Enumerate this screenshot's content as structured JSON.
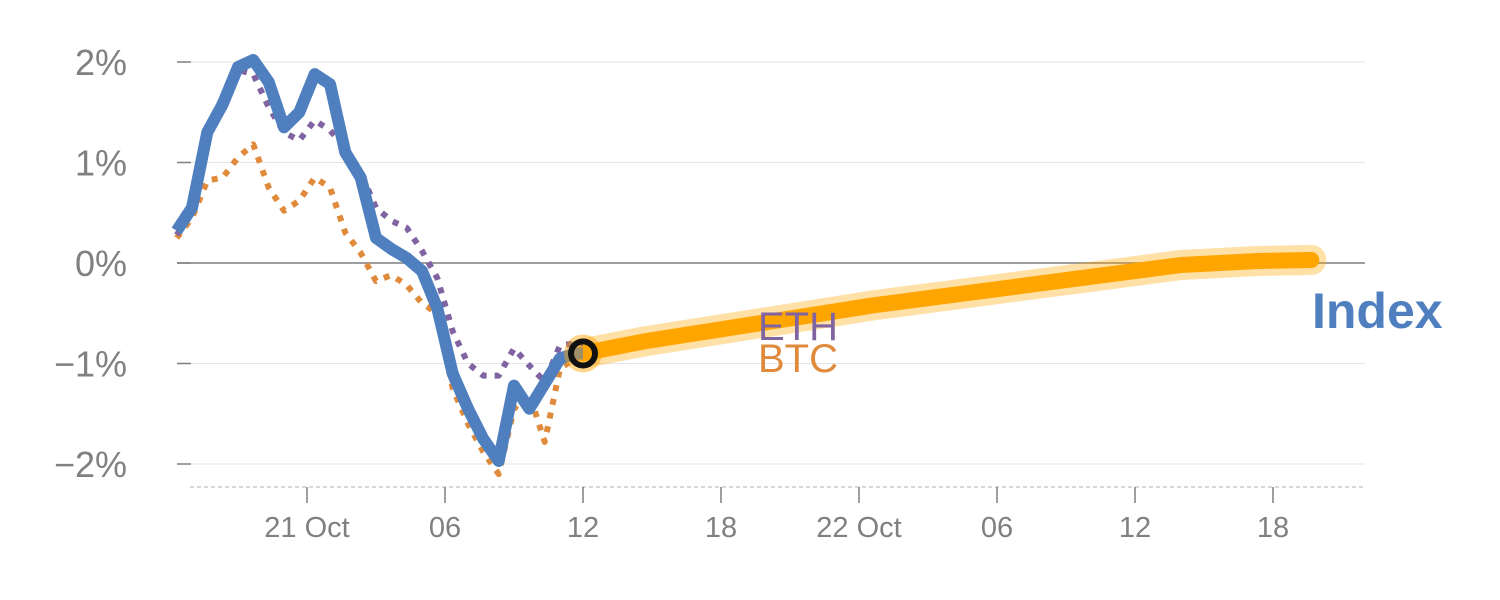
{
  "chart_data": {
    "type": "line",
    "title": "",
    "xlabel": "",
    "ylabel": "",
    "x_unit": "hours",
    "xlim": [
      -8,
      154
    ],
    "ylim": [
      -2.2,
      2.2
    ],
    "y_ticks": [
      {
        "value": 2,
        "label": "2%"
      },
      {
        "value": 1,
        "label": "1%"
      },
      {
        "value": 0,
        "label": "0%"
      },
      {
        "value": -1,
        "label": "−1%"
      },
      {
        "value": -2,
        "label": "−2%"
      }
    ],
    "x_ticks": [
      {
        "value": 12,
        "label": "21 Oct"
      },
      {
        "value": 30,
        "label": "06"
      },
      {
        "value": 48,
        "label": "12"
      },
      {
        "value": 66,
        "label": "18"
      },
      {
        "value": 84,
        "label": "22 Oct"
      },
      {
        "value": 102,
        "label": "06"
      },
      {
        "value": 120,
        "label": "12"
      },
      {
        "value": 138,
        "label": "18"
      }
    ],
    "series": [
      {
        "name": "Index",
        "color": "#4f7fbf",
        "style": "solid",
        "x": [
          -5,
          -3,
          -1,
          1,
          3,
          5,
          7,
          9,
          11,
          13,
          15,
          17,
          19,
          21,
          23,
          25,
          27,
          29,
          31,
          33,
          35,
          37,
          39,
          41,
          43,
          45,
          47,
          48
        ],
        "y": [
          0.32,
          0.55,
          1.3,
          1.58,
          1.95,
          2.02,
          1.8,
          1.35,
          1.5,
          1.88,
          1.78,
          1.1,
          0.85,
          0.25,
          0.14,
          0.05,
          -0.08,
          -0.45,
          -1.1,
          -1.45,
          -1.75,
          -1.97,
          -1.22,
          -1.45,
          -1.2,
          -0.95,
          -0.9,
          -0.9
        ]
      },
      {
        "name": "ETH",
        "color": "#8064a2",
        "style": "dotted",
        "x": [
          -5,
          -3,
          -1,
          1,
          3,
          5,
          7,
          9,
          11,
          13,
          15,
          17,
          19,
          21,
          23,
          25,
          27,
          29,
          31,
          33,
          35,
          37,
          39,
          41,
          43,
          45,
          47,
          48
        ],
        "y": [
          0.28,
          0.5,
          1.35,
          1.65,
          1.92,
          1.88,
          1.55,
          1.3,
          1.22,
          1.42,
          1.32,
          1.15,
          0.9,
          0.55,
          0.42,
          0.35,
          0.12,
          -0.15,
          -0.68,
          -1.0,
          -1.12,
          -1.12,
          -0.85,
          -1.02,
          -1.18,
          -0.82,
          -0.8,
          -0.8
        ]
      },
      {
        "name": "BTC",
        "color": "#e08a3c",
        "style": "dotted",
        "x": [
          -5,
          -3,
          -1,
          1,
          3,
          5,
          7,
          9,
          11,
          13,
          15,
          17,
          19,
          21,
          23,
          25,
          27,
          29,
          31,
          33,
          35,
          37,
          39,
          41,
          43,
          45,
          47,
          48
        ],
        "y": [
          0.25,
          0.45,
          0.82,
          0.85,
          1.05,
          1.18,
          0.75,
          0.52,
          0.62,
          0.85,
          0.75,
          0.3,
          0.1,
          -0.18,
          -0.12,
          -0.22,
          -0.4,
          -0.5,
          -1.25,
          -1.6,
          -1.88,
          -2.1,
          -1.45,
          -1.3,
          -1.78,
          -1.05,
          -0.95,
          -0.93
        ]
      },
      {
        "name": "Index projection",
        "color": "#ffa500",
        "style": "thick",
        "x": [
          48,
          56,
          66,
          76,
          86,
          96,
          106,
          116,
          126,
          136,
          143
        ],
        "y": [
          -0.9,
          -0.78,
          -0.66,
          -0.54,
          -0.42,
          -0.32,
          -0.22,
          -0.12,
          -0.02,
          0.02,
          0.03
        ]
      }
    ],
    "marker": {
      "x": 48,
      "y": -0.9,
      "color": "#ffa500"
    },
    "labels": [
      {
        "text": "ETH",
        "color": "#8064a2"
      },
      {
        "text": "BTC",
        "color": "#e08a3c"
      },
      {
        "text": "Index",
        "color": "#4f7fbf"
      }
    ]
  }
}
